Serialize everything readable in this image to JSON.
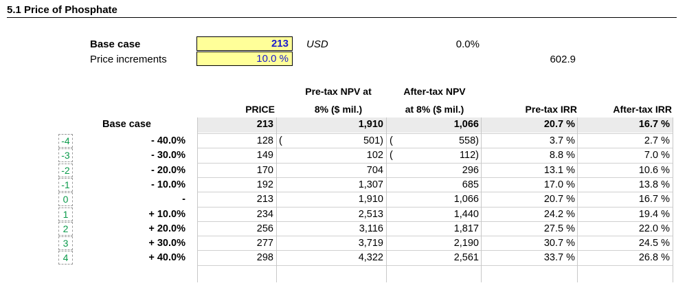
{
  "section_title": "5.1  Price of Phosphate",
  "inputs": {
    "base_case_label": "Base case",
    "base_case_value": "213",
    "currency": "USD",
    "pct_value": "0.0%",
    "increments_label": "Price increments",
    "increments_value": "10.0 %",
    "other_value": "602.9"
  },
  "table": {
    "headers": {
      "price": "PRICE",
      "pretax_npv_1": "Pre-tax NPV at",
      "pretax_npv_2": "8% ($ mil.)",
      "aftertax_npv_1": "After-tax NPV",
      "aftertax_npv_2": "at 8% ($ mil.)",
      "pretax_irr": "Pre-tax IRR",
      "aftertax_irr": "After-tax IRR"
    },
    "base_row": {
      "label": "Base case",
      "price": "213",
      "pretax_npv": "1,910",
      "aftertax_npv": "1,066",
      "pretax_irr": "20.7 %",
      "aftertax_irr": "16.7 %"
    },
    "rows": [
      {
        "idx": "-4",
        "label": "- 40.0%",
        "price": "128",
        "pretax_npv": "501)",
        "pretax_open": "(",
        "aftertax_npv": "558)",
        "aftertax_open": "(",
        "pretax_irr": "3.7 %",
        "aftertax_irr": "2.7 %"
      },
      {
        "idx": "-3",
        "label": "- 30.0%",
        "price": "149",
        "pretax_npv": "102",
        "pretax_open": "",
        "aftertax_npv": "112)",
        "aftertax_open": "(",
        "pretax_irr": "8.8 %",
        "aftertax_irr": "7.0 %"
      },
      {
        "idx": "-2",
        "label": "- 20.0%",
        "price": "170",
        "pretax_npv": "704",
        "pretax_open": "",
        "aftertax_npv": "296",
        "aftertax_open": "",
        "pretax_irr": "13.1 %",
        "aftertax_irr": "10.6 %"
      },
      {
        "idx": "-1",
        "label": "- 10.0%",
        "price": "192",
        "pretax_npv": "1,307",
        "pretax_open": "",
        "aftertax_npv": "685",
        "aftertax_open": "",
        "pretax_irr": "17.0 %",
        "aftertax_irr": "13.8 %"
      },
      {
        "idx": "0",
        "label": "-",
        "price": "213",
        "pretax_npv": "1,910",
        "pretax_open": "",
        "aftertax_npv": "1,066",
        "aftertax_open": "",
        "pretax_irr": "20.7 %",
        "aftertax_irr": "16.7 %"
      },
      {
        "idx": "1",
        "label": "+ 10.0%",
        "price": "234",
        "pretax_npv": "2,513",
        "pretax_open": "",
        "aftertax_npv": "1,440",
        "aftertax_open": "",
        "pretax_irr": "24.2 %",
        "aftertax_irr": "19.4 %"
      },
      {
        "idx": "2",
        "label": "+ 20.0%",
        "price": "256",
        "pretax_npv": "3,116",
        "pretax_open": "",
        "aftertax_npv": "1,817",
        "aftertax_open": "",
        "pretax_irr": "27.5 %",
        "aftertax_irr": "22.0 %"
      },
      {
        "idx": "3",
        "label": "+ 30.0%",
        "price": "277",
        "pretax_npv": "3,719",
        "pretax_open": "",
        "aftertax_npv": "2,190",
        "aftertax_open": "",
        "pretax_irr": "30.7 %",
        "aftertax_irr": "24.5 %"
      },
      {
        "idx": "4",
        "label": "+ 40.0%",
        "price": "298",
        "pretax_npv": "4,322",
        "pretax_open": "",
        "aftertax_npv": "2,561",
        "aftertax_open": "",
        "pretax_irr": "33.7 %",
        "aftertax_irr": "26.8 %"
      }
    ]
  },
  "colors": {
    "input_fill": "#ffff99",
    "input_text": "#1a1acc",
    "index_text": "#0a9a4a",
    "grey_fill": "#ebebeb"
  }
}
